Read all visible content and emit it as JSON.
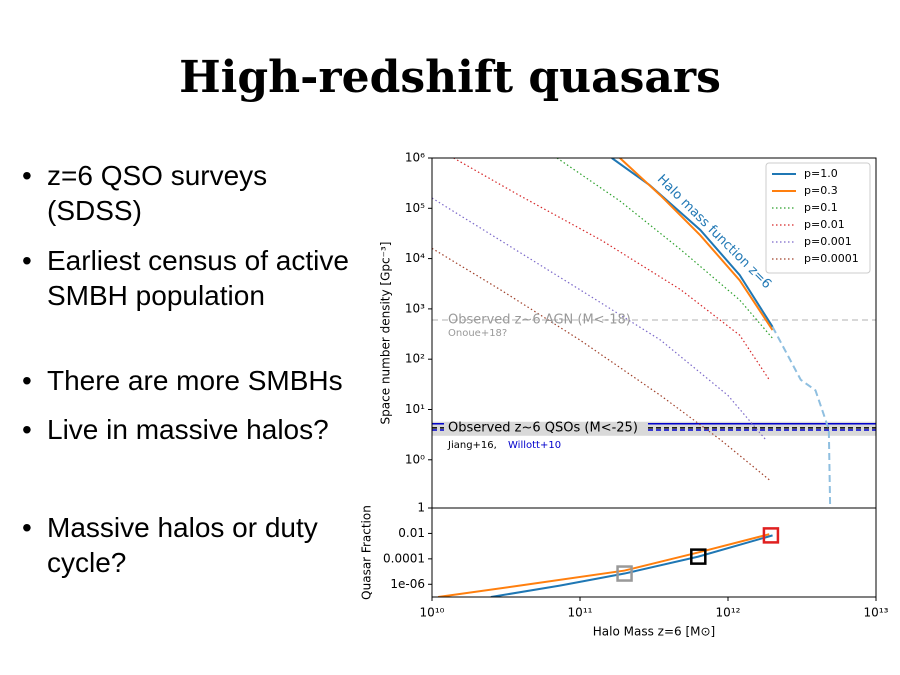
{
  "title": "High-redshift quasars",
  "bullets": [
    "z=6 QSO surveys (SDSS)",
    "Earliest census of active SMBH population",
    "There are more SMBHs",
    "Live in massive halos?",
    "Massive halos or duty cycle?"
  ],
  "chart_data": [
    {
      "type": "line",
      "ylabel": "Space number density [Gpc⁻³]",
      "xlog": true,
      "ylog": true,
      "xlim": [
        10000000000,
        10000000000000
      ],
      "ylim": [
        0.11,
        1000000
      ],
      "yticks": [
        {
          "value": 1,
          "label": "10⁰"
        },
        {
          "value": 10,
          "label": "10¹"
        },
        {
          "value": 100,
          "label": "10²"
        },
        {
          "value": 1000,
          "label": "10³"
        },
        {
          "value": 10000,
          "label": "10⁴"
        },
        {
          "value": 100000,
          "label": "10⁵"
        },
        {
          "value": 1000000,
          "label": "10⁶"
        }
      ],
      "legend": "upper right",
      "series": [
        {
          "name": "p=1.0",
          "color": "#1f77b4",
          "dash": "solid",
          "x": [
            164000000000,
            295000000000,
            650000000000,
            1200000000000,
            2000000000000
          ],
          "values": [
            1000000,
            290000,
            37000,
            4700,
            440
          ]
        },
        {
          "name": "p=0.3",
          "color": "#ff7f0e",
          "dash": "solid",
          "x": [
            186000000000,
            350000000000,
            650000000000,
            1200000000000,
            2000000000000
          ],
          "values": [
            1000000,
            180000,
            29000,
            3700,
            380
          ]
        },
        {
          "name": "p=0.1",
          "color": "#2ca02c",
          "dash": "dotted",
          "x": [
            70000000000,
            186000000000,
            480000000000,
            1200000000000,
            2000000000000
          ],
          "values": [
            1000000,
            140000,
            15000,
            1500,
            260
          ]
        },
        {
          "name": "p=0.01",
          "color": "#d62728",
          "dash": "dotted",
          "x": [
            14000000000,
            39000000000,
            140000000000,
            480000000000,
            1200000000000,
            1900000000000
          ],
          "values": [
            1000000,
            180000,
            23000,
            2400,
            300,
            39
          ]
        },
        {
          "name": "p=0.001",
          "color": "#7b68c9",
          "dash": "dotted",
          "x": [
            10000000000,
            29000000000,
            100000000000,
            350000000000,
            1000000000000,
            1800000000000
          ],
          "values": [
            160000,
            23000,
            2400,
            240,
            19,
            2.5
          ]
        },
        {
          "name": "p=0.0001",
          "color": "#a0402a",
          "dash": "dotted",
          "x": [
            10000000000,
            29000000000,
            100000000000,
            350000000000,
            890000000000,
            1900000000000
          ],
          "values": [
            16000,
            2400,
            240,
            19,
            2.5,
            0.4
          ]
        }
      ],
      "hmf_label": "Halo mass function z=6",
      "hmf_extension": {
        "color": "#8fbfe0",
        "x": [
          2000000000000,
          3100000000000,
          3900000000000,
          4800000000000,
          4900000000000
        ],
        "values": [
          440,
          39,
          24,
          4,
          0.11
        ]
      },
      "agn_line": {
        "value": 600,
        "color": "#cccccc",
        "label": "Observed z~6 AGN (M<-18)",
        "ref": "Onoue+18?"
      },
      "qso_lines": {
        "band": [
          3.0,
          5.7
        ],
        "band_color": "#d9d9d9",
        "blue": 5.2,
        "black": 4.3,
        "blue_dashed": 3.9,
        "color": "#0000cc",
        "label": "Observed z~6 QSOs (M<-25)",
        "ref1": "Jiang+16,",
        "ref2": "Willott+10"
      }
    },
    {
      "type": "line",
      "xlabel": "Halo Mass z=6 [M⊙]",
      "ylabel": "Quasar Fraction",
      "xlog": true,
      "ylog": true,
      "xlim": [
        10000000000,
        10000000000000
      ],
      "ylim": [
        1e-07,
        1
      ],
      "xticks": [
        {
          "value": 10000000000,
          "label": "10¹⁰"
        },
        {
          "value": 100000000000,
          "label": "10¹¹"
        },
        {
          "value": 1000000000000,
          "label": "10¹²"
        },
        {
          "value": 10000000000000,
          "label": "10¹³"
        }
      ],
      "yticks": [
        1,
        0.01,
        0.0001,
        {
          "value": 1e-06,
          "label": "1e-06"
        }
      ],
      "series": [
        {
          "color": "#1f77b4",
          "x": [
            25000000000,
            73000000000,
            200000000000,
            630000000000,
            2000000000000
          ],
          "values": [
            1e-07,
            7.8e-07,
            7e-06,
            0.00015,
            0.007
          ]
        },
        {
          "color": "#ff7f0e",
          "x": [
            11000000000,
            39000000000,
            200000000000,
            630000000000,
            1900000000000
          ],
          "values": [
            1e-07,
            7.8e-07,
            1.2e-05,
            0.00032,
            0.0087
          ]
        }
      ],
      "markers": [
        {
          "x": 200000000000,
          "value": 7e-06,
          "color": "#999999"
        },
        {
          "x": 630000000000,
          "value": 0.00015,
          "color": "#000000"
        },
        {
          "x": 1950000000000,
          "value": 0.007,
          "color": "#e02020"
        }
      ]
    }
  ]
}
